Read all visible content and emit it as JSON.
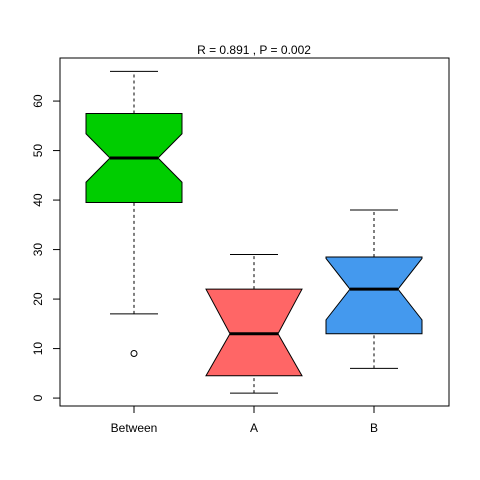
{
  "chart_data": {
    "type": "boxplot",
    "title": "R =  0.891 ,  P =  0.002",
    "categories": [
      "Between",
      "A",
      "B"
    ],
    "boxes": [
      {
        "whislo": 17,
        "q1": 39.5,
        "notch_lo": 43.6,
        "med": 48.5,
        "notch_hi": 53.4,
        "q3": 57.5,
        "whishi": 66,
        "outliers": [
          9
        ],
        "color": "#00cd00"
      },
      {
        "whislo": 1,
        "q1": 4.5,
        "notch_lo": 4.5,
        "med": 13,
        "notch_hi": 22,
        "q3": 22,
        "whishi": 29,
        "outliers": [],
        "color": "#ff6666"
      },
      {
        "whislo": 6,
        "q1": 13,
        "notch_lo": 15.8,
        "med": 22,
        "notch_hi": 28.2,
        "q3": 28.5,
        "whishi": 38,
        "outliers": [],
        "color": "#4499ee"
      }
    ],
    "ylim": [
      -1.6,
      68.7
    ],
    "yticks": [
      0,
      10,
      20,
      30,
      40,
      50,
      60
    ]
  }
}
